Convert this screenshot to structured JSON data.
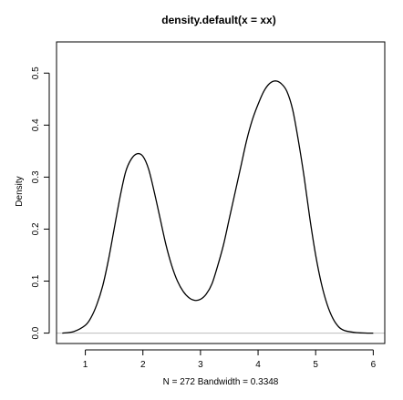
{
  "chart_data": {
    "type": "line",
    "title": "density.default(x = xx)",
    "xlabel": "N = 272   Bandwidth = 0.3348",
    "ylabel": "Density",
    "xlim": [
      0.5,
      6.2
    ],
    "ylim": [
      -0.02,
      0.56
    ],
    "x_ticks": [
      1,
      2,
      3,
      4,
      5,
      6
    ],
    "y_ticks": [
      0.0,
      0.1,
      0.2,
      0.3,
      0.4,
      0.5
    ],
    "x_tick_labels": [
      "1",
      "2",
      "3",
      "4",
      "5",
      "6"
    ],
    "y_tick_labels": [
      "0.0",
      "0.1",
      "0.2",
      "0.3",
      "0.4",
      "0.5"
    ],
    "baseline": 0.0,
    "grid": false,
    "series": [
      {
        "color": "#000000",
        "x": [
          0.6,
          0.8,
          1.0,
          1.1,
          1.2,
          1.3,
          1.4,
          1.5,
          1.6,
          1.7,
          1.8,
          1.9,
          2.0,
          2.1,
          2.2,
          2.3,
          2.4,
          2.5,
          2.6,
          2.7,
          2.8,
          2.9,
          3.0,
          3.1,
          3.2,
          3.3,
          3.4,
          3.5,
          3.6,
          3.7,
          3.8,
          3.9,
          4.0,
          4.1,
          4.2,
          4.3,
          4.4,
          4.5,
          4.6,
          4.7,
          4.8,
          4.9,
          5.0,
          5.1,
          5.2,
          5.3,
          5.4,
          5.5,
          5.7,
          5.9,
          6.0
        ],
        "y": [
          0.0,
          0.003,
          0.015,
          0.03,
          0.055,
          0.09,
          0.14,
          0.2,
          0.26,
          0.31,
          0.335,
          0.345,
          0.34,
          0.315,
          0.27,
          0.22,
          0.17,
          0.13,
          0.1,
          0.08,
          0.068,
          0.063,
          0.065,
          0.075,
          0.095,
          0.13,
          0.17,
          0.22,
          0.27,
          0.32,
          0.37,
          0.41,
          0.44,
          0.465,
          0.48,
          0.485,
          0.48,
          0.465,
          0.43,
          0.37,
          0.3,
          0.22,
          0.15,
          0.095,
          0.055,
          0.028,
          0.012,
          0.005,
          0.001,
          0.0,
          0.0
        ]
      }
    ]
  }
}
